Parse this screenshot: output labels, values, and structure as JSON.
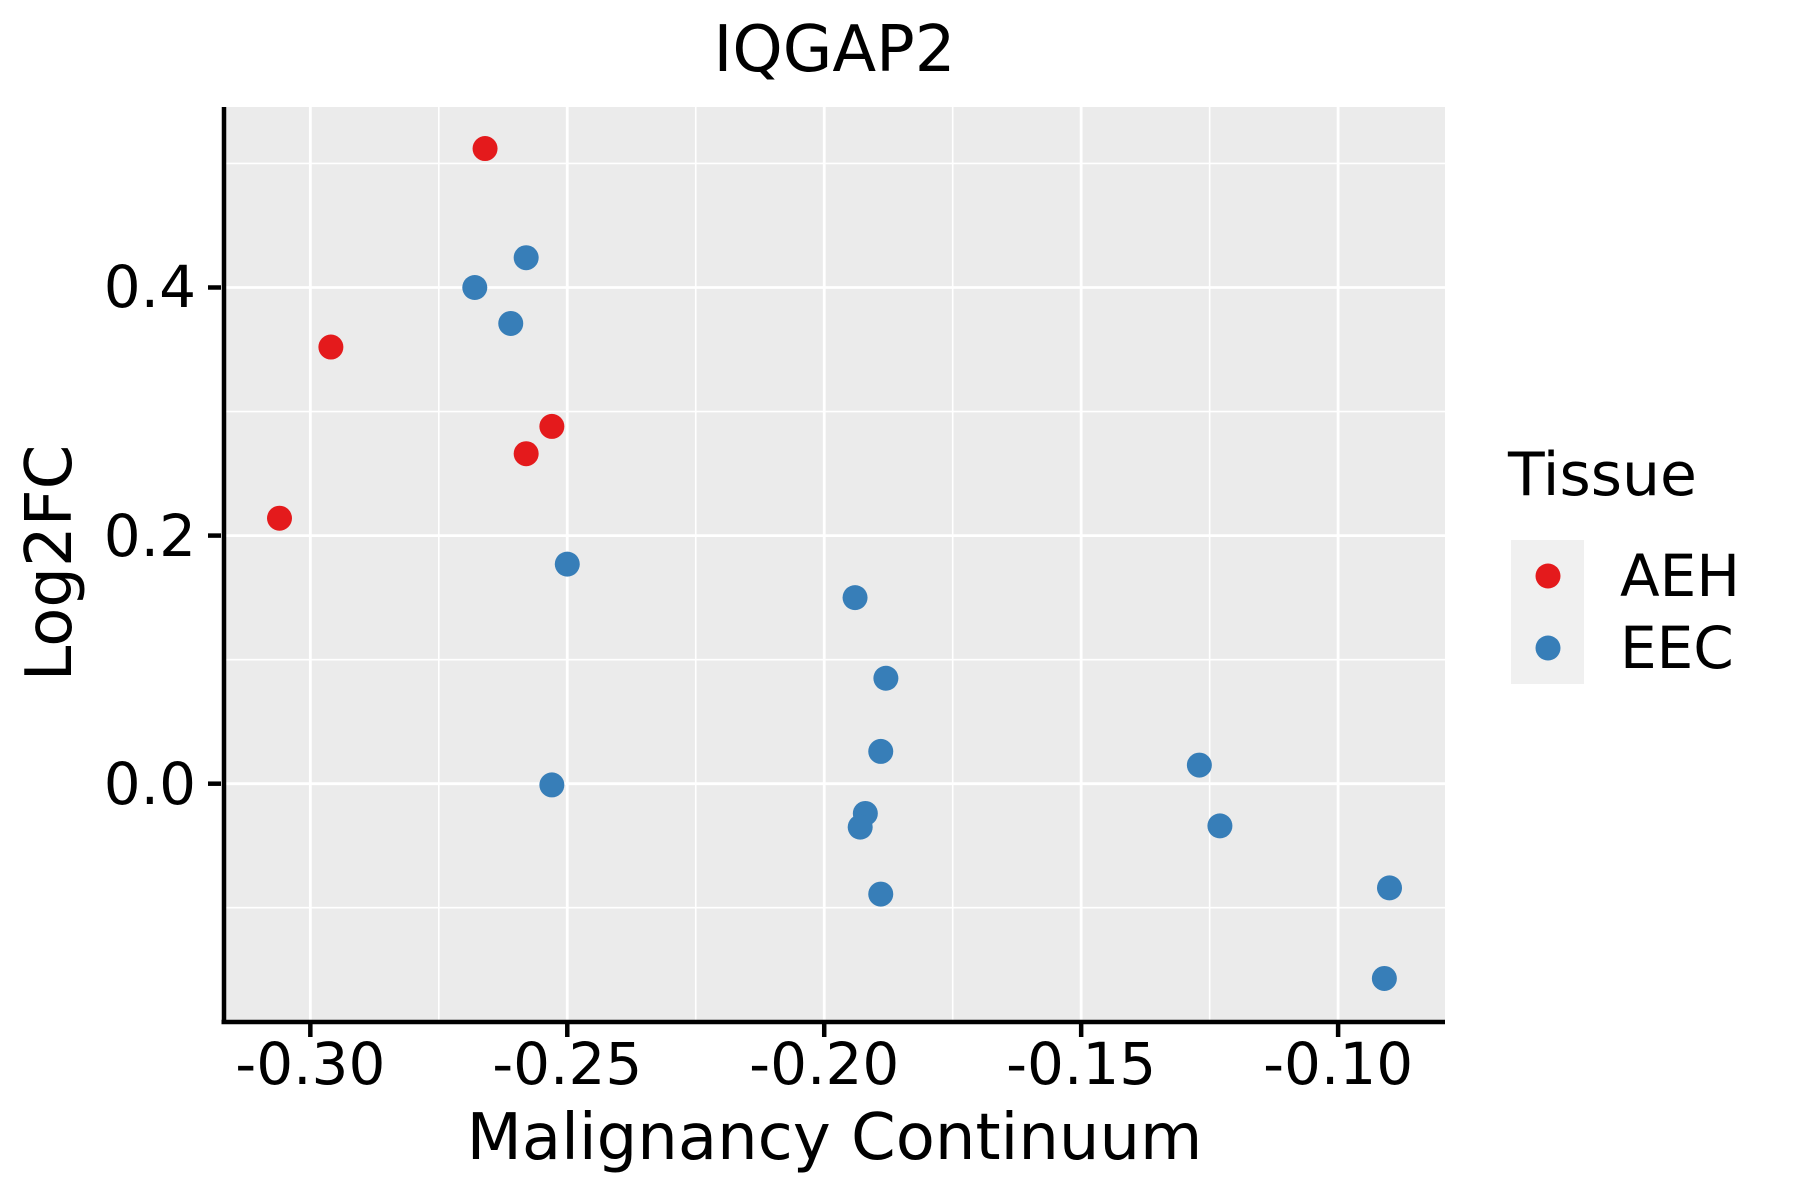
{
  "chart_data": {
    "type": "scatter",
    "title": "IQGAP2",
    "xlabel": "Malignancy Continuum",
    "ylabel": "Log2FC",
    "xlim": [
      -0.3168,
      -0.0792
    ],
    "ylim": [
      -0.1905,
      0.5455
    ],
    "x_major_ticks": [
      -0.3,
      -0.25,
      -0.2,
      -0.15,
      -0.1
    ],
    "x_tick_labels": [
      "-0.30",
      "-0.25",
      "-0.20",
      "-0.15",
      "-0.10"
    ],
    "x_minor_gridlines": [
      -0.275,
      -0.225,
      -0.175,
      -0.125
    ],
    "y_major_ticks": [
      0.0,
      0.2,
      0.4
    ],
    "y_tick_labels": [
      "0.0",
      "0.2",
      "0.4"
    ],
    "y_minor_gridlines": [
      -0.1,
      0.1,
      0.3,
      0.5
    ],
    "grid": "on",
    "legend": {
      "title": "Tissue",
      "position": "right"
    },
    "series": [
      {
        "name": "AEH",
        "color": "#E41A1C",
        "points": [
          [
            -0.266,
            0.512
          ],
          [
            -0.296,
            0.352
          ],
          [
            -0.253,
            0.288
          ],
          [
            -0.258,
            0.266
          ],
          [
            -0.306,
            0.214
          ]
        ]
      },
      {
        "name": "EEC",
        "color": "#377EB8",
        "points": [
          [
            -0.258,
            0.424
          ],
          [
            -0.268,
            0.4
          ],
          [
            -0.261,
            0.371
          ],
          [
            -0.25,
            0.177
          ],
          [
            -0.253,
            -0.001
          ],
          [
            -0.194,
            0.15
          ],
          [
            -0.188,
            0.085
          ],
          [
            -0.189,
            0.026
          ],
          [
            -0.192,
            -0.024
          ],
          [
            -0.193,
            -0.035
          ],
          [
            -0.189,
            -0.089
          ],
          [
            -0.127,
            0.015
          ],
          [
            -0.123,
            -0.034
          ],
          [
            -0.09,
            -0.084
          ],
          [
            -0.091,
            -0.157
          ]
        ]
      }
    ],
    "styles": {
      "panel_bg": "#EBEBEB",
      "grid_color": "#FFFFFF",
      "axis_color": "#000000",
      "legend_key_bg": "#F0F0F0",
      "text_color": "#000000"
    }
  }
}
